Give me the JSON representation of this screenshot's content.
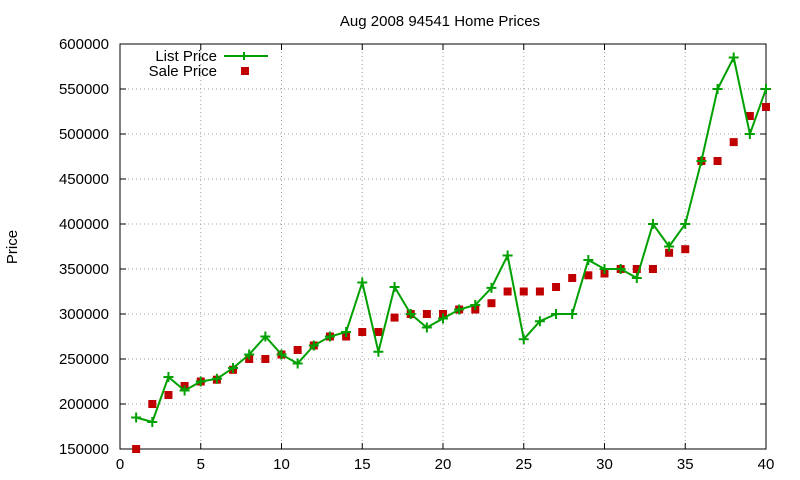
{
  "chart_data": {
    "type": "line",
    "title": "Aug 2008 94541 Home Prices",
    "xlabel": "",
    "ylabel": "Price",
    "xlim": [
      0,
      40
    ],
    "ylim": [
      150000,
      600000
    ],
    "x_ticks": [
      0,
      5,
      10,
      15,
      20,
      25,
      30,
      35,
      40
    ],
    "y_ticks": [
      150000,
      200000,
      250000,
      300000,
      350000,
      400000,
      450000,
      500000,
      550000,
      600000
    ],
    "grid": true,
    "legend_position": "top-left",
    "x": [
      1,
      2,
      3,
      4,
      5,
      6,
      7,
      8,
      9,
      10,
      11,
      12,
      13,
      14,
      15,
      16,
      17,
      18,
      19,
      20,
      21,
      22,
      23,
      24,
      25,
      26,
      27,
      28,
      29,
      30,
      31,
      32,
      33,
      34,
      35,
      36,
      37,
      38,
      39,
      40
    ],
    "series": [
      {
        "name": "List Price",
        "type": "line",
        "marker": "plus",
        "color": "#00a000",
        "values": [
          185000,
          180000,
          230000,
          215000,
          225000,
          228000,
          240000,
          255000,
          275000,
          255000,
          245000,
          265000,
          275000,
          280000,
          335000,
          258000,
          330000,
          300000,
          285000,
          295000,
          305000,
          310000,
          329000,
          365000,
          272000,
          292000,
          300000,
          300000,
          360000,
          350000,
          350000,
          340000,
          400000,
          375000,
          400000,
          470000,
          550000,
          585000,
          500000,
          550000
        ]
      },
      {
        "name": "Sale Price",
        "type": "scatter",
        "marker": "square",
        "color": "#c00000",
        "values": [
          150000,
          200000,
          210000,
          220000,
          225000,
          227000,
          238000,
          250000,
          250000,
          255000,
          260000,
          265000,
          275000,
          275000,
          280000,
          280000,
          296000,
          300000,
          300000,
          300000,
          305000,
          305000,
          312000,
          325000,
          325000,
          325000,
          330000,
          340000,
          343000,
          345000,
          350000,
          350000,
          350000,
          368000,
          372000,
          470000,
          470000,
          491000,
          520000,
          530000
        ]
      }
    ]
  }
}
